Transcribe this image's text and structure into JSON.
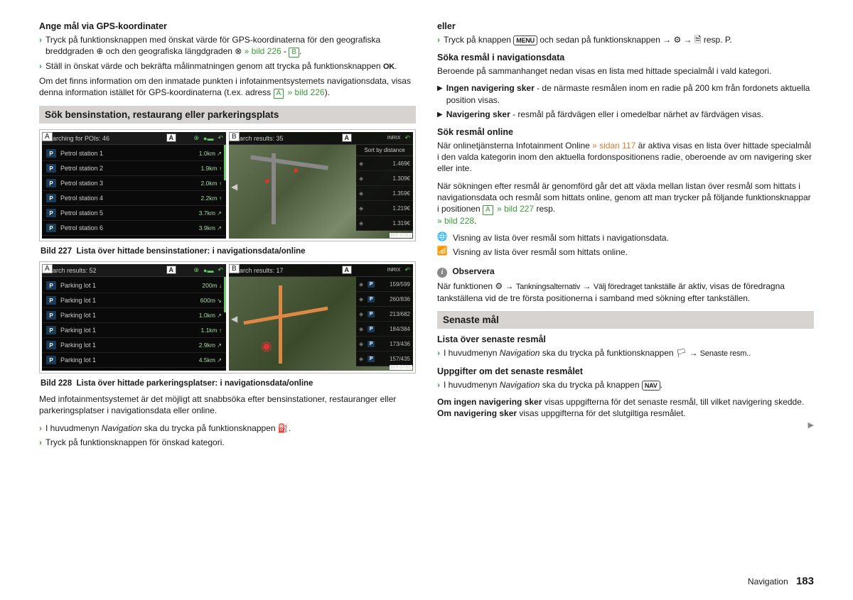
{
  "left": {
    "h1": "Ange mål via GPS-koordinater",
    "b1": "Tryck på funktionsknappen med önskat värde för GPS-koordinaterna för den geografiska breddgraden ⊕ och den geografiska längdgraden ⊗ ",
    "b1_link": "» bild 226",
    "b1_tail": " - ",
    "b1_key": "B",
    "b1_end": ".",
    "b2": "Ställ in önskat värde och bekräfta målinmatningen genom att trycka på funktionsknappen ",
    "b2_ok": "OK",
    "b2_end": ".",
    "p1a": "Om det finns information om den inmatade punkten i infotainmentsystemets navigationsdata, visas denna information istället för GPS-koordinaterna (t.ex. adress ",
    "p1_key": "A",
    "p1_link": "» bild 226",
    "p1_end": ").",
    "sec1": "Sök bensinstation, restaurang eller parkeringsplats",
    "fig227": {
      "left_header": "Searching for POIs: 46",
      "rows": [
        {
          "icon": "P",
          "name": "Petrol station 1",
          "dist": "1.0km",
          "arr": "↗"
        },
        {
          "icon": "P",
          "name": "Petrol station 2",
          "dist": "1.9km",
          "arr": "↑"
        },
        {
          "icon": "P",
          "name": "Petrol station 3",
          "dist": "2.0km",
          "arr": "↑"
        },
        {
          "icon": "P",
          "name": "Petrol station 4",
          "dist": "2.2km",
          "arr": "↑"
        },
        {
          "icon": "P",
          "name": "Petrol station 5",
          "dist": "3.7km",
          "arr": "↗"
        },
        {
          "icon": "P",
          "name": "Petrol station 6",
          "dist": "3.9km",
          "arr": "↗"
        }
      ],
      "right_header": "Search results: 35",
      "sort": "Sort by distance",
      "inrix": "INRIX",
      "side": [
        {
          "v": "1.469€"
        },
        {
          "v": "1.309€"
        },
        {
          "v": "1.359€"
        },
        {
          "v": "1.219€"
        },
        {
          "v": "1.319€"
        }
      ],
      "bit": "BIT-0761",
      "caption_num": "Bild 227",
      "caption": "Lista över hittade bensinstationer: i navigationsdata/online"
    },
    "fig228": {
      "left_header": "Search results: 52",
      "rows": [
        {
          "icon": "P",
          "name": "Parking lot 1",
          "dist": "200m",
          "arr": "↓"
        },
        {
          "icon": "P",
          "name": "Parking lot 1",
          "dist": "600m",
          "arr": "↘"
        },
        {
          "icon": "P",
          "name": "Parking lot 1",
          "dist": "1.0km",
          "arr": "↗"
        },
        {
          "icon": "P",
          "name": "Parking lot 1",
          "dist": "1.1km",
          "arr": "↑"
        },
        {
          "icon": "P",
          "name": "Parking lot 1",
          "dist": "2.9km",
          "arr": "↗"
        },
        {
          "icon": "P",
          "name": "Parking lot 1",
          "dist": "4.5km",
          "arr": "↗"
        }
      ],
      "right_header": "Search results: 17",
      "inrix": "INRIX",
      "side": [
        {
          "v": "159/599"
        },
        {
          "v": "260/836"
        },
        {
          "v": "213/682"
        },
        {
          "v": "184/384"
        },
        {
          "v": "173/436"
        },
        {
          "v": "157/435"
        }
      ],
      "bit": "BIT-0762",
      "caption_num": "Bild 228",
      "caption": "Lista över hittade parkeringsplatser: i navigationsdata/online"
    },
    "p2": "Med infotainmentsystemet är det möjligt att snabbsöka efter bensinstationer, restauranger eller parkeringsplatser i navigationsdata eller online.",
    "b3": "I huvudmenyn Navigation ska du trycka på funktionsknappen ⛽.",
    "b3_pre": "I huvudmenyn ",
    "b3_nav": "Navigation",
    "b3_post": " ska du trycka på funktionsknappen ⛽.",
    "b4": "Tryck på funktionsknappen för önskad kategori."
  },
  "right": {
    "eller": "eller",
    "b5": "Tryck på knappen ",
    "b5_menu": "MENU",
    "b5_mid": " och sedan på funktionsknappen → ⚙ → 🗎 resp. P.",
    "h2": "Söka resmål i navigationsdata",
    "p3": "Beroende på sammanhanget nedan visas en lista med hittade specialmål i vald kategori.",
    "t1a": "Ingen navigering sker",
    "t1b": " - de närmaste resmålen inom en radie på 200 km från fordonets aktuella position visas.",
    "t2a": "Navigering sker",
    "t2b": " - resmål på färdvägen eller i omedelbar närhet av färdvägen visas.",
    "h3": "Sök resmål online",
    "p4a": "När onlinetjänsterna Infotainment Online ",
    "p4_link": "» sidan 117",
    "p4b": " är aktiva visas en lista över hittade specialmål i den valda kategorin inom den aktuella fordonspositionens radie, oberoende av om navigering sker eller inte.",
    "p5a": "När sökningen efter resmål är genomförd går det att växla mellan listan över resmål som hittats i navigationsdata och resmål som hittats online, genom att man trycker på följande funktionsknappar i positionen ",
    "p5_key": "A",
    "p5_link1": "» bild 227",
    "p5_resp": " resp.",
    "p5_link2": "» bild 228",
    "p5_end": ".",
    "ic1": "Visning av lista över resmål som hittats i navigationsdata.",
    "ic2": "Visning av lista över resmål som hittats online.",
    "obs": "Observera",
    "obs_p_a": "När funktionen ⚙ → ",
    "obs_p_b": "Tankningsalternativ",
    "obs_p_c": " → ",
    "obs_p_d": "Välj föredraget tankställe",
    "obs_p_e": " är aktiv, visas de föredragna tankställena vid de tre första positionerna i samband med sökning efter tankställen.",
    "sec2": "Senaste mål",
    "h4": "Lista över senaste resmål",
    "b6_pre": "I huvudmenyn ",
    "b6_nav": "Navigation",
    "b6_mid": " ska du trycka på funktionsknappen 🏳 → ",
    "b6_s1": "Senaste resm.",
    "b6_end": ".",
    "h5": "Uppgifter om det senaste resmålet",
    "b7_pre": "I huvudmenyn ",
    "b7_nav": "Navigation",
    "b7_mid": " ska du trycka på knappen ",
    "b7_btn": "NAV",
    "b7_end": ".",
    "p6a": "Om ingen navigering sker",
    "p6b": " visas uppgifterna för det senaste resmål, till vilket navigering skedde. ",
    "p6c": "Om navigering sker",
    "p6d": " visas uppgifterna för det slutgiltiga resmålet."
  },
  "footer": {
    "section": "Navigation",
    "page": "183"
  }
}
